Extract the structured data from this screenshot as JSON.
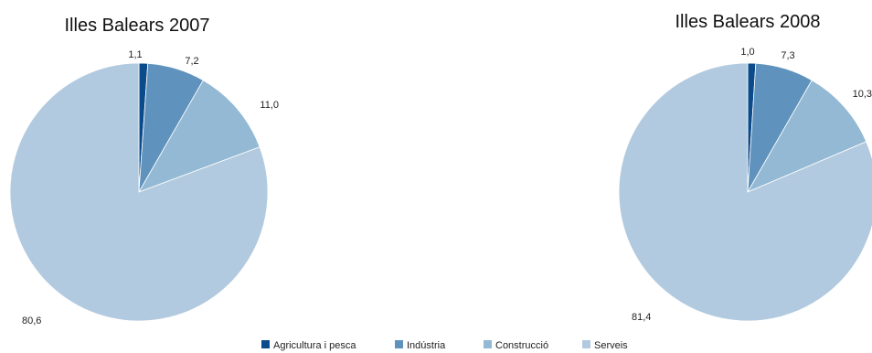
{
  "chart_data": [
    {
      "type": "pie",
      "title": "Illes Balears 2007",
      "categories": [
        "Agricultura i pesca",
        "Indústria",
        "Construcció",
        "Serveis"
      ],
      "values": [
        1.1,
        7.2,
        11.0,
        80.6
      ],
      "value_labels": [
        "1,1",
        "7,2",
        "11,0",
        "80,6"
      ],
      "colors": [
        "#0b4a8b",
        "#5f93bd",
        "#93b9d4",
        "#b2cadf"
      ]
    },
    {
      "type": "pie",
      "title": "Illes Balears 2008",
      "categories": [
        "Agricultura i pesca",
        "Indústria",
        "Construcció",
        "Serveis"
      ],
      "values": [
        1.0,
        7.3,
        10.3,
        81.4
      ],
      "value_labels": [
        "1,0",
        "7,3",
        "10,3",
        "81,4"
      ],
      "colors": [
        "#0b4a8b",
        "#5f93bd",
        "#93b9d4",
        "#b2cadf"
      ]
    }
  ],
  "legend": {
    "placement": "bottom-center",
    "items": [
      {
        "label": "Agricultura i pesca",
        "color": "#0b4a8b"
      },
      {
        "label": "Indústria",
        "color": "#5f93bd"
      },
      {
        "label": "Construcció",
        "color": "#93b9d4"
      },
      {
        "label": "Serveis",
        "color": "#b2cadf"
      }
    ]
  }
}
